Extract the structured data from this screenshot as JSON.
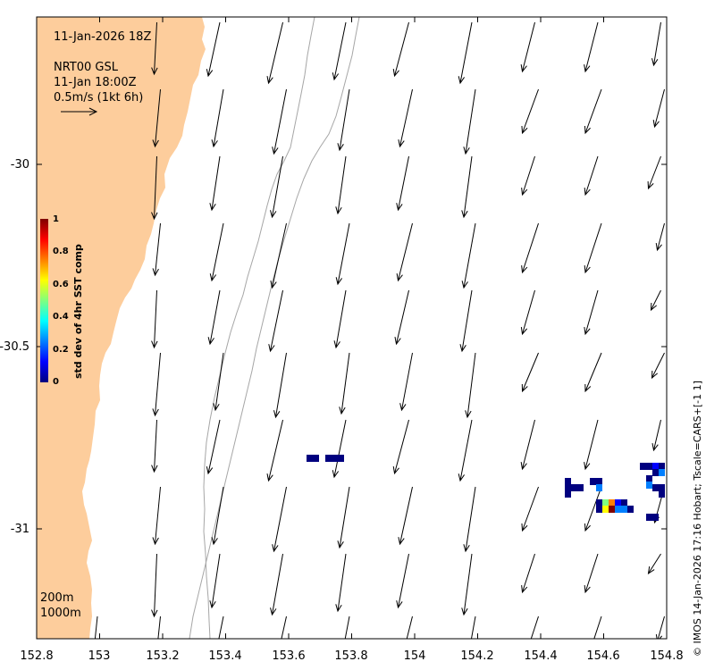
{
  "annotations": {
    "timestamp": "11-Jan-2026 18Z",
    "product": "NRT00 GSL",
    "valid_time": "11-Jan 18:00Z",
    "scale_label": "0.5m/s (1kt 6h)",
    "isobath_200": "200m",
    "isobath_1000": "1000m",
    "credit": "© IMOS 14-Jan-2026 17:16 Hobart; Tscale=CARS+[-1 1]"
  },
  "colorbar": {
    "title": "std dev of 4hr SST comp",
    "ticks": [
      "0",
      "0.2",
      "0.4",
      "0.6",
      "0.8",
      "1"
    ],
    "colors": [
      "#00007f",
      "#0000ff",
      "#007fff",
      "#00ffff",
      "#7fff7f",
      "#ffff00",
      "#ff7f00",
      "#ff0000",
      "#7f0000"
    ]
  },
  "axes": {
    "x_ticks": [
      "152.8",
      "153",
      "153.2",
      "153.4",
      "153.6",
      "153.8",
      "154",
      "154.2",
      "154.4",
      "154.6",
      "154.8"
    ],
    "y_ticks": [
      "-30",
      "-30.5",
      "-31"
    ]
  },
  "colors": {
    "land": "#fdcd9c",
    "isobath": "#a6a6a6",
    "vector": "#000000"
  }
}
